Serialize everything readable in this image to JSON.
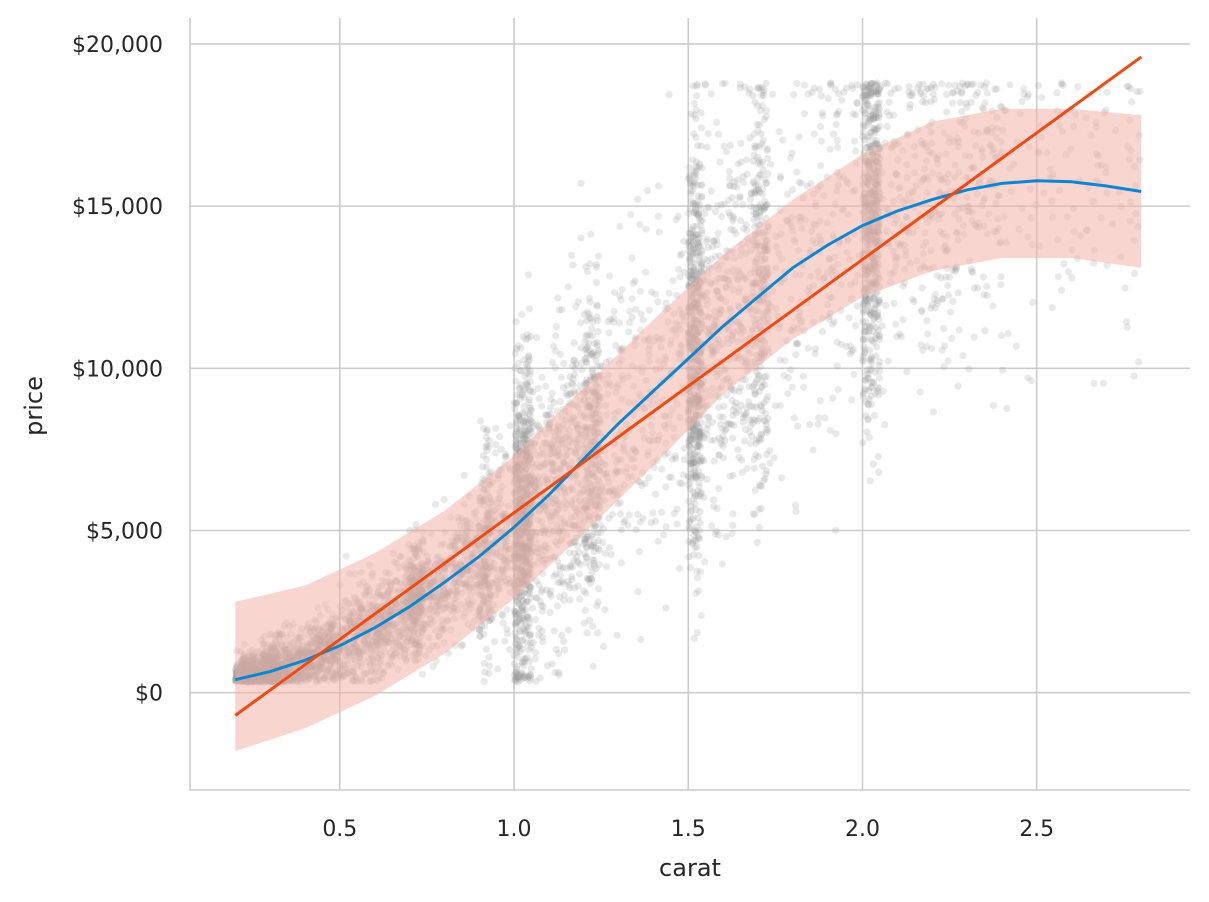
{
  "chart_data": {
    "type": "scatter",
    "xlabel": "carat",
    "ylabel": "price",
    "xlim": [
      0.07,
      2.94
    ],
    "ylim": [
      -3000,
      20800
    ],
    "x_ticks": [
      0.5,
      1.0,
      1.5,
      2.0,
      2.5
    ],
    "x_tick_labels": [
      "0.5",
      "1.0",
      "1.5",
      "2.0",
      "2.5"
    ],
    "y_ticks": [
      0,
      5000,
      10000,
      15000,
      20000
    ],
    "y_tick_labels": [
      "$0",
      "$5,000",
      "$10,000",
      "$15,000",
      "$20,000"
    ],
    "grid": true,
    "colors": {
      "points": "#999999",
      "band": "#f4b3aa",
      "smooth_line": "#0a87d0",
      "linear_line": "#f04a10"
    },
    "clusters": [
      {
        "x0": 0.2,
        "x1": 0.32,
        "n": 700,
        "spread": 350
      },
      {
        "x0": 0.3,
        "x1": 0.5,
        "n": 650,
        "spread": 500
      },
      {
        "x0": 0.5,
        "x1": 0.7,
        "n": 550,
        "spread": 800
      },
      {
        "x0": 0.7,
        "x1": 0.74,
        "n": 260,
        "spread": 900
      },
      {
        "x0": 0.74,
        "x1": 0.9,
        "n": 350,
        "spread": 1000
      },
      {
        "x0": 0.9,
        "x1": 0.93,
        "n": 180,
        "spread": 1600
      },
      {
        "x0": 0.93,
        "x1": 0.99,
        "n": 150,
        "spread": 1500
      },
      {
        "x0": 1.0,
        "x1": 1.05,
        "n": 700,
        "spread": 2600
      },
      {
        "x0": 1.05,
        "x1": 1.2,
        "n": 450,
        "spread": 2300
      },
      {
        "x0": 1.2,
        "x1": 1.25,
        "n": 320,
        "spread": 2400
      },
      {
        "x0": 1.25,
        "x1": 1.49,
        "n": 300,
        "spread": 2600
      },
      {
        "x0": 1.5,
        "x1": 1.54,
        "n": 600,
        "spread": 3200
      },
      {
        "x0": 1.54,
        "x1": 1.69,
        "n": 380,
        "spread": 3000
      },
      {
        "x0": 1.69,
        "x1": 1.73,
        "n": 260,
        "spread": 3000
      },
      {
        "x0": 1.73,
        "x1": 1.99,
        "n": 240,
        "spread": 3000
      },
      {
        "x0": 2.0,
        "x1": 2.05,
        "n": 550,
        "spread": 3000
      },
      {
        "x0": 2.05,
        "x1": 2.4,
        "n": 380,
        "spread": 2600
      },
      {
        "x0": 2.4,
        "x1": 2.8,
        "n": 130,
        "spread": 2800
      }
    ],
    "smooth_fit": {
      "x": [
        0.2,
        0.3,
        0.4,
        0.5,
        0.6,
        0.7,
        0.8,
        0.9,
        1.0,
        1.1,
        1.2,
        1.3,
        1.4,
        1.5,
        1.6,
        1.7,
        1.8,
        1.9,
        2.0,
        2.1,
        2.2,
        2.3,
        2.4,
        2.5,
        2.6,
        2.7,
        2.8
      ],
      "y": [
        400,
        650,
        1000,
        1450,
        2000,
        2650,
        3400,
        4200,
        5100,
        6100,
        7200,
        8300,
        9300,
        10300,
        11300,
        12200,
        13100,
        13800,
        14400,
        14850,
        15200,
        15500,
        15700,
        15780,
        15750,
        15620,
        15450
      ]
    },
    "band": {
      "x": [
        0.2,
        0.4,
        0.6,
        0.8,
        1.0,
        1.2,
        1.4,
        1.6,
        1.8,
        2.0,
        2.2,
        2.4,
        2.6,
        2.8
      ],
      "upper": [
        2800,
        3300,
        4300,
        5600,
        7300,
        9400,
        11500,
        13500,
        15200,
        16600,
        17600,
        18000,
        18000,
        17800
      ],
      "lower": [
        -1800,
        -1100,
        -100,
        1200,
        2900,
        4900,
        7000,
        9200,
        10900,
        12200,
        13000,
        13400,
        13400,
        13100
      ]
    },
    "linear_fit": {
      "x": [
        0.2,
        2.8
      ],
      "y": [
        -700,
        19600
      ]
    }
  }
}
